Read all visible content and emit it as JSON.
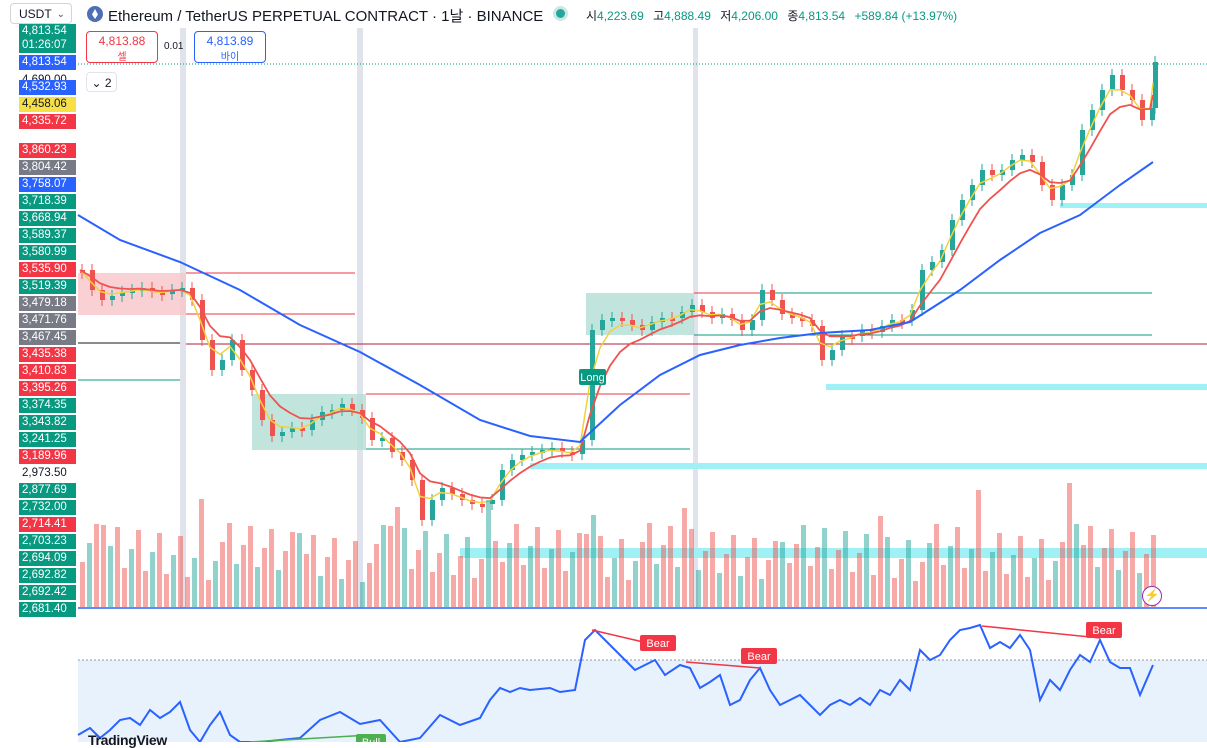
{
  "symbol_selector": {
    "value": "USDT"
  },
  "header": {
    "title": "Ethereum / TetherUS PERPETUAL CONTRACT · 1날 · BINANCE",
    "ohlc": {
      "open_label": "시",
      "open": "4,223.69",
      "high_label": "고",
      "high": "4,888.49",
      "low_label": "저",
      "low": "4,206.00",
      "close_label": "종",
      "close": "4,813.54",
      "change": "+589.84 (+13.97%)"
    }
  },
  "trade": {
    "sell_price": "4,813.88",
    "sell_label": "셀",
    "spread": "0.01",
    "buy_price": "4,813.89",
    "buy_label": "바이"
  },
  "indicator_toggle": {
    "count": "2"
  },
  "price_labels": [
    {
      "text": "4,813.54",
      "bg": "#089981"
    },
    {
      "text": "01:26:07",
      "bg": "#089981"
    },
    {
      "text": "4,813.54",
      "bg": "#2962ff"
    },
    {
      "text": "4,690.00",
      "bg": "#ffffff"
    },
    {
      "text": "4,532.93",
      "bg": "#2962ff"
    },
    {
      "text": "4,458.06",
      "bg": "#f7e047"
    },
    {
      "text": "4,335.72",
      "bg": "#f23645"
    },
    {
      "text": "3,860.23",
      "bg": "#f23645"
    },
    {
      "text": "3,804.42",
      "bg": "#787b86"
    },
    {
      "text": "3,758.07",
      "bg": "#2962ff"
    },
    {
      "text": "3,718.39",
      "bg": "#089981"
    },
    {
      "text": "3,668.94",
      "bg": "#089981"
    },
    {
      "text": "3,589.37",
      "bg": "#089981"
    },
    {
      "text": "3,580.99",
      "bg": "#089981"
    },
    {
      "text": "3,535.90",
      "bg": "#f23645"
    },
    {
      "text": "3,519.39",
      "bg": "#089981"
    },
    {
      "text": "3,479.18",
      "bg": "#787b86"
    },
    {
      "text": "3,471.76",
      "bg": "#787b86"
    },
    {
      "text": "3,467.45",
      "bg": "#787b86"
    },
    {
      "text": "3,435.38",
      "bg": "#f23645"
    },
    {
      "text": "3,410.83",
      "bg": "#f23645"
    },
    {
      "text": "3,395.26",
      "bg": "#f23645"
    },
    {
      "text": "3,374.35",
      "bg": "#089981"
    },
    {
      "text": "3,343.82",
      "bg": "#089981"
    },
    {
      "text": "3,241.25",
      "bg": "#089981"
    },
    {
      "text": "3,189.96",
      "bg": "#f23645"
    },
    {
      "text": "2,973.50",
      "bg": "#ffffff"
    },
    {
      "text": "2,877.69",
      "bg": "#089981"
    },
    {
      "text": "2,732.00",
      "bg": "#089981"
    },
    {
      "text": "2,714.41",
      "bg": "#f23645"
    },
    {
      "text": "2,703.23",
      "bg": "#089981"
    },
    {
      "text": "2,694.09",
      "bg": "#089981"
    },
    {
      "text": "2,692.82",
      "bg": "#089981"
    },
    {
      "text": "2,692.42",
      "bg": "#089981"
    },
    {
      "text": "2,681.40",
      "bg": "#089981"
    }
  ],
  "signals": {
    "long_label": "Long",
    "bear_1": "Bear",
    "bear_2": "Bear",
    "bear_3": "Bear",
    "bull_1": "Bull"
  },
  "colors": {
    "up": "#26a69a",
    "down": "#ef5350",
    "ema_fast": "#f0d23c",
    "ema_mid": "#ef5350",
    "ema_slow": "#2962ff",
    "rsi": "#2962ff",
    "zone_cyan": "#9ff1f5"
  },
  "footer": {
    "logo": "TradingView"
  }
}
